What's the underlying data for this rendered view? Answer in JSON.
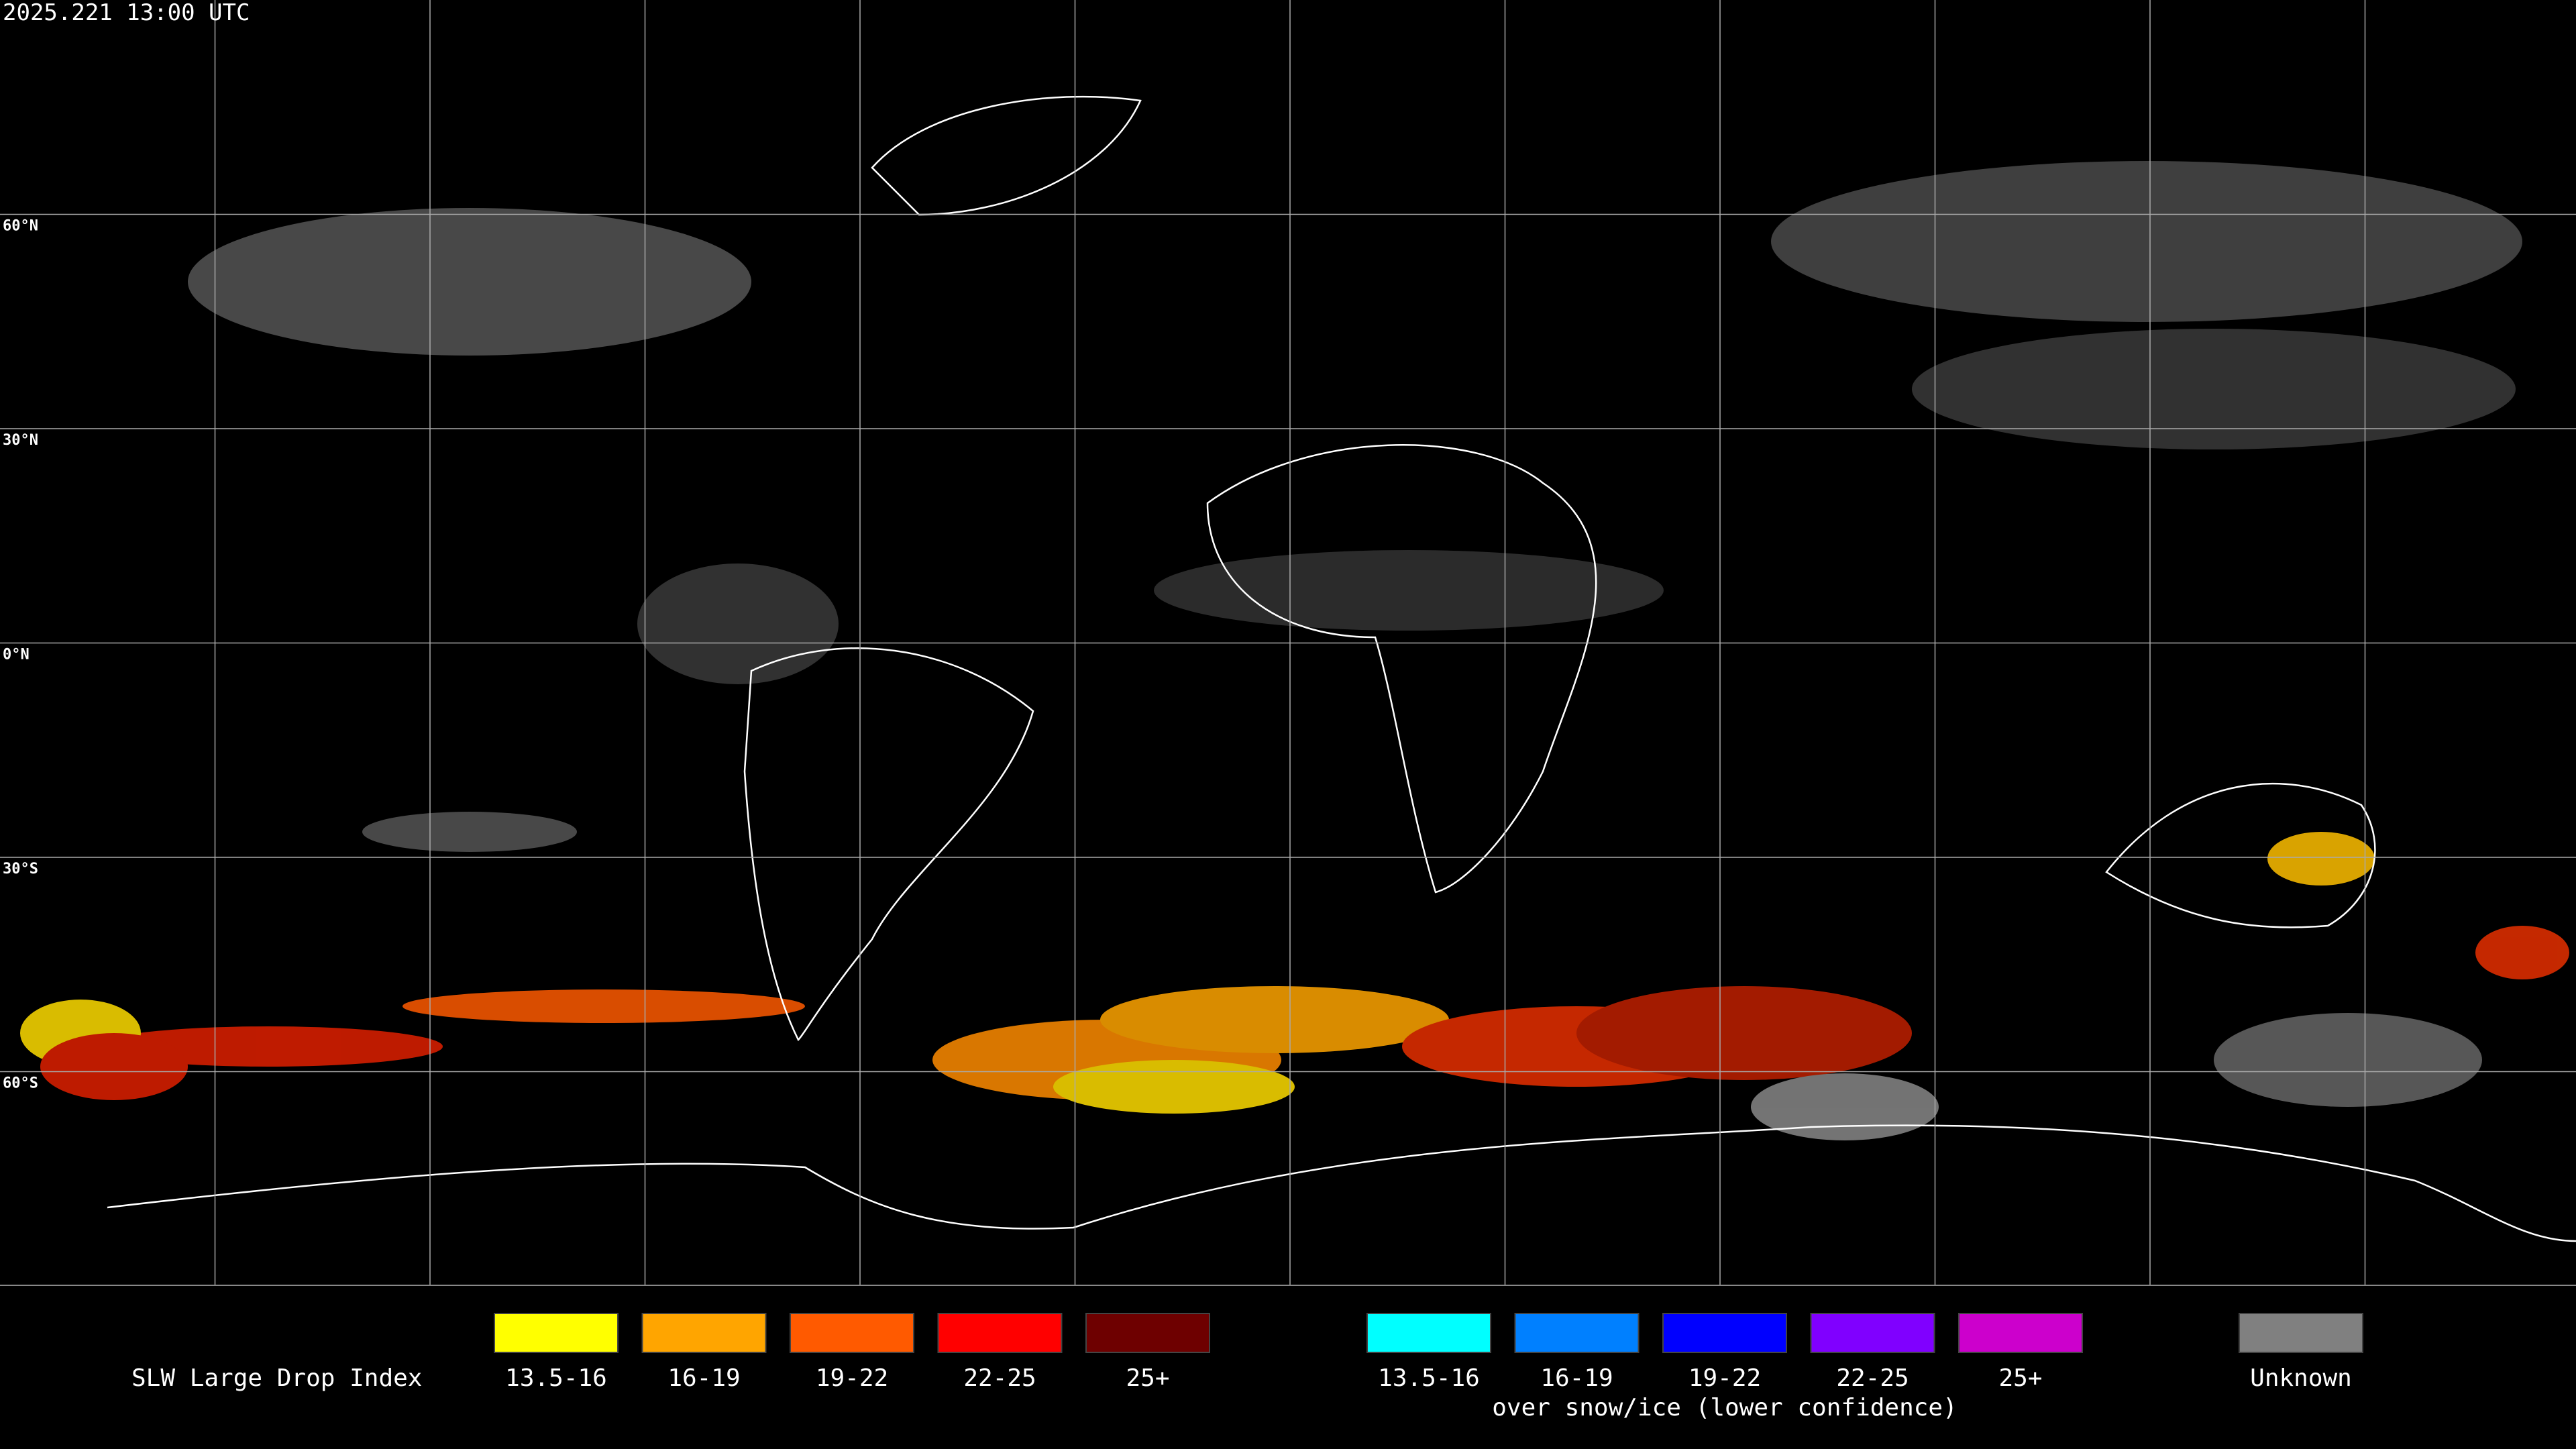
{
  "timestamp": "2025.221 13:00 UTC",
  "lat_labels": [
    "60°N",
    "30°N",
    "0°N",
    "30°S",
    "60°S"
  ],
  "legend": {
    "title": "SLW Large Drop Index",
    "items": [
      {
        "label": "13.5-16",
        "color": "#ffff00"
      },
      {
        "label": "16-19",
        "color": "#ffa500"
      },
      {
        "label": "19-22",
        "color": "#ff5a00"
      },
      {
        "label": "22-25",
        "color": "#ff0000"
      },
      {
        "label": "25+",
        "color": "#6e0000"
      }
    ],
    "snow_ice_items": [
      {
        "label": "13.5-16",
        "color": "#00ffff"
      },
      {
        "label": "16-19",
        "color": "#0080ff"
      },
      {
        "label": "19-22",
        "color": "#0000ff"
      },
      {
        "label": "22-25",
        "color": "#8000ff"
      },
      {
        "label": "25+",
        "color": "#cc00cc"
      }
    ],
    "snow_ice_note": "over snow/ice (lower confidence)",
    "unknown": {
      "label": "Unknown",
      "color": "#808080"
    }
  }
}
